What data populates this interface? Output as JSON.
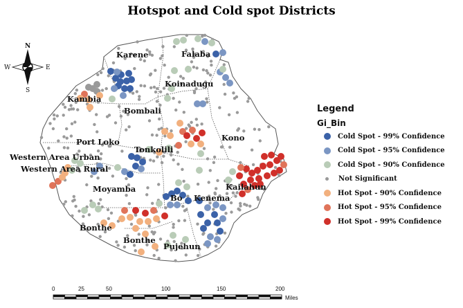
{
  "title": "Hotspot and Cold spot Districts",
  "compass": {
    "n": "N",
    "s": "S",
    "e": "E",
    "w": "W"
  },
  "districts": [
    "Karene",
    "Falaba",
    "Koinadugu",
    "Kambia",
    "Bombali",
    "Port Loko",
    "Kono",
    "Tonkolili",
    "Western Area Urban",
    "Western Area Rural",
    "Moyamba",
    "Kailahun",
    "Bo",
    "Kenema",
    "Bonthe",
    "Bonthe",
    "Pujehun"
  ],
  "legend": {
    "title": "Legend",
    "subtitle": "Gi_Bin",
    "items": [
      {
        "label": "Cold Spot - 99% Confidence",
        "color": "#3b62a8",
        "size": "large"
      },
      {
        "label": "Cold Spot - 95% Confidence",
        "color": "#7b96c3",
        "size": "large"
      },
      {
        "label": "Cold Spot - 90% Confidence",
        "color": "#b9ccb7",
        "size": "large"
      },
      {
        "label": "Not Significant",
        "color": "#9a9a9a",
        "size": "small"
      },
      {
        "label": "Hot Spot - 90% Confidence",
        "color": "#f2b07e",
        "size": "large"
      },
      {
        "label": "Hot Spot - 95% Confidence",
        "color": "#e0745a",
        "size": "large"
      },
      {
        "label": "Hot Spot - 99% Confidence",
        "color": "#d0302a",
        "size": "large"
      }
    ]
  },
  "scale_bar": {
    "ticks": [
      "0",
      "25",
      "50",
      "100",
      "150",
      "200"
    ],
    "unit": "Miles"
  }
}
